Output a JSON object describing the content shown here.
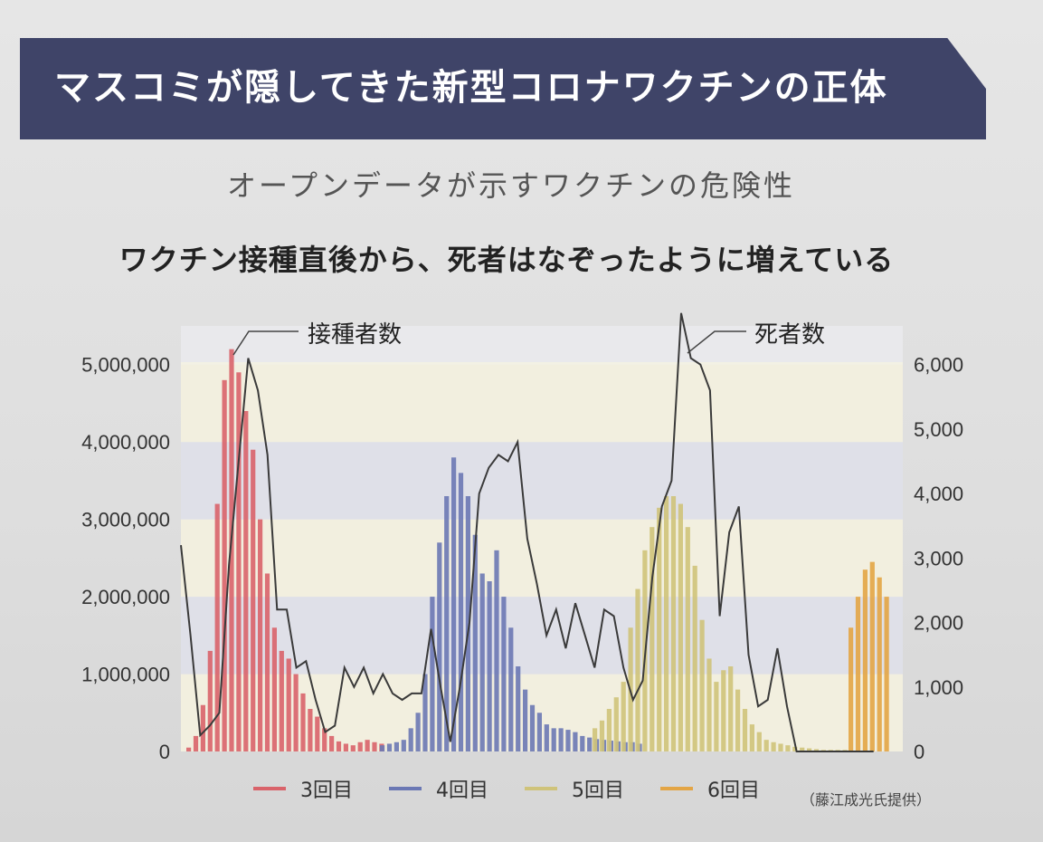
{
  "header": {
    "title": "マスコミが隠してきた新型コロナワクチンの正体",
    "subtitle": "オープンデータが示すワクチンの危険性",
    "headline": "ワクチン接種直後から、死者はなぞったように増えている"
  },
  "credit": "（藤江成光氏提供）",
  "colors": {
    "banner": "#3f4468",
    "dose3": "#d9636a",
    "dose4": "#6b78b4",
    "dose5": "#cfc37a",
    "dose6": "#e3a545",
    "deaths_line": "#3a3a3a"
  },
  "chart_data": {
    "type": "bar",
    "annotations": [
      "接種者数",
      "死者数"
    ],
    "y_left": {
      "ticks": [
        "0",
        "1,000,000",
        "2,000,000",
        "3,000,000",
        "4,000,000",
        "5,000,000"
      ],
      "ylim": [
        0,
        5500000
      ]
    },
    "y_right": {
      "ticks": [
        "0",
        "1,000",
        "2,000",
        "3,000",
        "4,000",
        "5,000",
        "6,000"
      ],
      "ylim": [
        0,
        6600
      ]
    },
    "legend": [
      "3回目",
      "4回目",
      "5回目",
      "6回目"
    ],
    "vaccinations": [
      {
        "dose": "3回目",
        "values": [
          50000,
          200000,
          600000,
          1300000,
          3200000,
          4800000,
          5200000,
          4900000,
          4400000,
          3900000,
          3000000,
          2300000,
          1600000,
          1300000,
          1200000,
          1000000,
          750000,
          550000,
          450000,
          300000,
          200000,
          130000,
          100000,
          80000,
          120000,
          150000,
          120000,
          100000
        ]
      },
      {
        "dose": "4回目",
        "values": [
          80000,
          100000,
          120000,
          150000,
          300000,
          500000,
          1000000,
          2000000,
          2700000,
          3300000,
          3800000,
          3600000,
          3300000,
          2800000,
          2300000,
          2200000,
          2600000,
          2000000,
          1600000,
          1100000,
          800000,
          600000,
          500000,
          350000,
          300000,
          300000,
          280000,
          250000,
          200000,
          180000,
          160000,
          150000,
          140000,
          130000,
          120000,
          120000,
          100000
        ]
      },
      {
        "dose": "5回目",
        "values": [
          300000,
          400000,
          550000,
          700000,
          900000,
          1600000,
          2100000,
          2600000,
          2900000,
          3150000,
          3300000,
          3300000,
          3200000,
          2900000,
          2400000,
          1700000,
          1200000,
          900000,
          1050000,
          1100000,
          800000,
          550000,
          350000,
          250000,
          150000,
          120000,
          100000,
          80000,
          60000,
          50000,
          40000,
          30000,
          20000,
          20000,
          20000,
          20000
        ]
      },
      {
        "dose": "6回目",
        "values": [
          1600000,
          2000000,
          2350000,
          2450000,
          2250000,
          2000000
        ]
      }
    ],
    "deaths": {
      "series_label": "死者数",
      "values": [
        3200,
        1800,
        250,
        400,
        600,
        2900,
        4500,
        6100,
        5600,
        4600,
        2200,
        2200,
        1300,
        1400,
        800,
        300,
        400,
        1300,
        1000,
        1300,
        900,
        1200,
        900,
        800,
        900,
        900,
        1900,
        1000,
        150,
        1000,
        2000,
        4000,
        4400,
        4600,
        4500,
        4800,
        3300,
        2600,
        1800,
        2200,
        1600,
        2300,
        1800,
        1300,
        2200,
        2100,
        1300,
        800,
        1100,
        2700,
        3800,
        4200,
        6800,
        6100,
        6000,
        5600,
        2100,
        3400,
        3800,
        1500,
        700,
        800,
        1600,
        700,
        0,
        0,
        0,
        0,
        0,
        0,
        0,
        0,
        0
      ]
    }
  }
}
